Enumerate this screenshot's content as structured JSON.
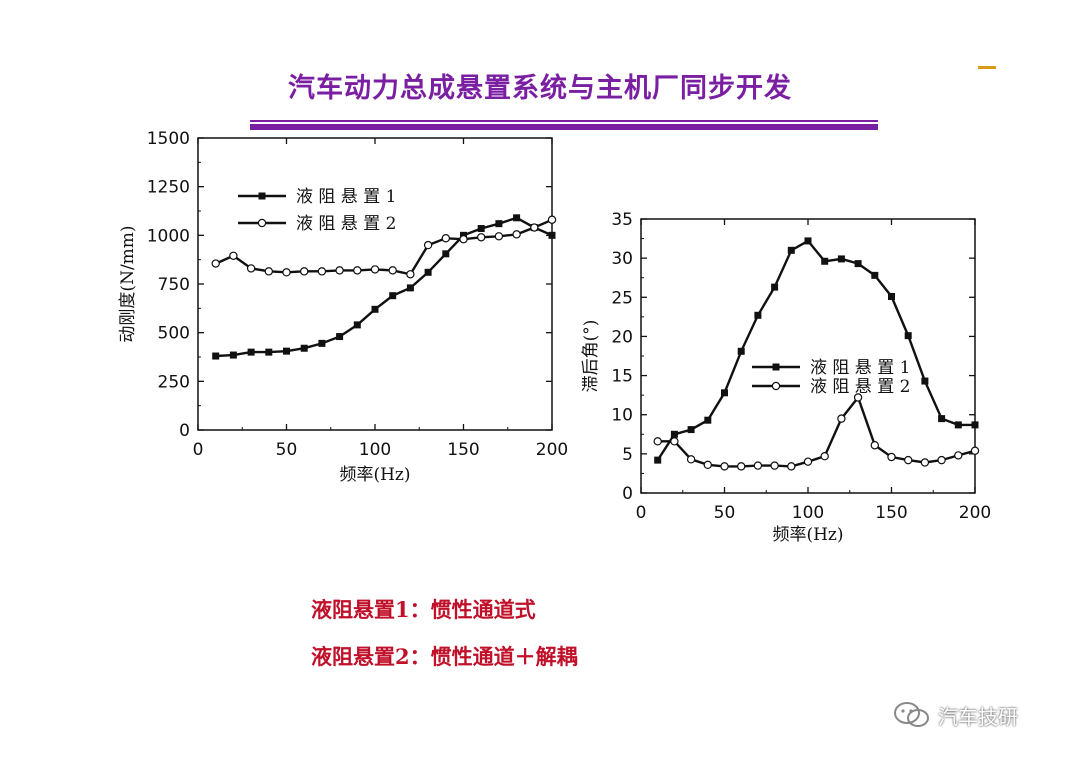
{
  "slide": {
    "title": "汽车动力总成悬置系统与主机厂同步开发",
    "notes": [
      "液阻悬置1：惯性通道式",
      "液阻悬置2：惯性通道＋解耦"
    ],
    "watermark": "汽车技研",
    "title_color": "#7a1fa2",
    "note_color": "#c0102a"
  },
  "chart_data": [
    {
      "type": "line",
      "xlabel": "频率(Hz)",
      "ylabel": "动刚度(N/mm)",
      "xlim": [
        0,
        200
      ],
      "ylim": [
        0,
        1500
      ],
      "xticks": [
        0,
        50,
        100,
        150,
        200
      ],
      "yticks": [
        0,
        250,
        500,
        750,
        1000,
        1250,
        1500
      ],
      "legend_position": "top-left",
      "grid": false,
      "series": [
        {
          "name": "液阻悬置1",
          "marker": "filled-square",
          "x": [
            10,
            20,
            30,
            40,
            50,
            60,
            70,
            80,
            90,
            100,
            110,
            120,
            130,
            140,
            150,
            160,
            170,
            180,
            190,
            200
          ],
          "y": [
            380,
            385,
            400,
            400,
            405,
            420,
            445,
            480,
            540,
            620,
            690,
            730,
            810,
            905,
            1000,
            1035,
            1060,
            1090,
            1040,
            1000
          ]
        },
        {
          "name": "液阻悬置2",
          "marker": "open-circle",
          "x": [
            10,
            20,
            30,
            40,
            50,
            60,
            70,
            80,
            90,
            100,
            110,
            120,
            130,
            140,
            150,
            160,
            170,
            180,
            190,
            200
          ],
          "y": [
            855,
            895,
            830,
            815,
            810,
            815,
            815,
            820,
            820,
            825,
            820,
            800,
            950,
            985,
            980,
            990,
            995,
            1005,
            1040,
            1080
          ]
        }
      ]
    },
    {
      "type": "line",
      "xlabel": "频率(Hz)",
      "ylabel": "滞后角(°)",
      "xlim": [
        0,
        200
      ],
      "ylim": [
        0,
        35
      ],
      "xticks": [
        0,
        50,
        100,
        150,
        200
      ],
      "yticks": [
        0,
        5,
        10,
        15,
        20,
        25,
        30,
        35
      ],
      "legend_position": "center-right",
      "grid": false,
      "series": [
        {
          "name": "液阻悬置1",
          "marker": "filled-square",
          "x": [
            10,
            20,
            30,
            40,
            50,
            60,
            70,
            80,
            90,
            100,
            110,
            120,
            130,
            140,
            150,
            160,
            170,
            180,
            190,
            200
          ],
          "y": [
            4.2,
            7.5,
            8.1,
            9.3,
            12.8,
            18.1,
            22.7,
            26.3,
            31.0,
            32.2,
            29.6,
            29.9,
            29.3,
            27.8,
            25.1,
            20.1,
            14.3,
            9.5,
            8.7,
            8.7
          ]
        },
        {
          "name": "液阻悬置2",
          "marker": "open-circle",
          "x": [
            10,
            20,
            30,
            40,
            50,
            60,
            70,
            80,
            90,
            100,
            110,
            120,
            130,
            140,
            150,
            160,
            170,
            180,
            190,
            200
          ],
          "y": [
            6.6,
            6.6,
            4.3,
            3.6,
            3.4,
            3.4,
            3.5,
            3.5,
            3.4,
            4.0,
            4.7,
            9.5,
            12.2,
            6.1,
            4.6,
            4.2,
            3.9,
            4.2,
            4.8,
            5.4
          ]
        }
      ]
    }
  ]
}
